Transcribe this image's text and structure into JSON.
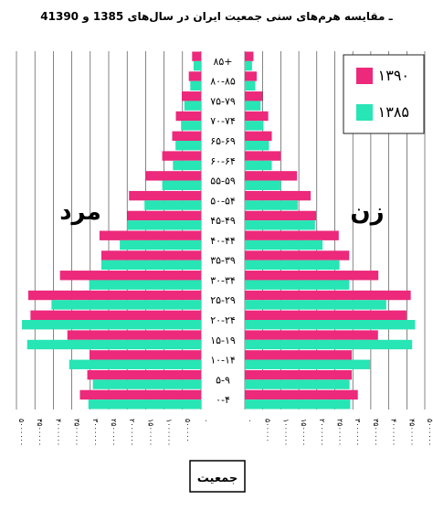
{
  "chart_data": {
    "type": "bar",
    "orientation": "horizontal-pyramid",
    "title": "4ـ مقایسه هرم‌های سنی جمعیت ایران در سال‌های  1385 و 1390",
    "left_label": "مرد",
    "right_label": "زن",
    "xlabel": "جمعیت",
    "categories": [
      "۰-۴",
      "۵-۹",
      "۱۰-۱۴",
      "۱۵-۱۹",
      "۲۰-۲۴",
      "۲۵-۲۹",
      "۳۰-۳۴",
      "۳۵-۳۹",
      "۴۰-۴۴",
      "۴۵-۴۹",
      "۵۰-۵۴",
      "۵۵-۵۹",
      "۶۰-۶۴",
      "۶۵-۶۹",
      "۷۰-۷۴",
      "۷۵-۷۹",
      "۸۰-۸۵",
      "۸۵+"
    ],
    "category_order": "bottom-to-top",
    "xlim": [
      0,
      5000000
    ],
    "x_ticks_left": [
      "۵۰۰۰۰۰۰",
      "۴۵۰۰۰۰۰",
      "۴۰۰۰۰۰۰",
      "۳۵۰۰۰۰۰",
      "۳۰۰۰۰۰۰",
      "۲۵۰۰۰۰۰",
      "۲۰۰۰۰۰۰",
      "۱۵۰۰۰۰۰",
      "۱۰۰۰۰۰۰",
      "۵۰۰۰۰۰",
      "۰"
    ],
    "x_ticks_right": [
      "۰",
      "۵۰۰۰۰۰",
      "۱۰۰۰۰۰۰",
      "۱۵۰۰۰۰۰",
      "۲۰۰۰۰۰۰",
      "۲۵۰۰۰۰۰",
      "۳۰۰۰۰۰۰",
      "۳۵۰۰۰۰۰",
      "۴۰۰۰۰۰۰",
      "۴۵۰۰۰۰۰",
      "۵۰۰۰۰۰۰"
    ],
    "series": [
      {
        "name": "۱۳۹۰",
        "color": "#ec297b",
        "male": [
          3280000,
          3080000,
          3020000,
          3620000,
          4620000,
          4680000,
          3820000,
          2700000,
          2750000,
          2000000,
          1950000,
          1510000,
          1050000,
          780000,
          680000,
          520000,
          330000,
          240000
        ],
        "female": [
          3140000,
          2970000,
          2970000,
          3700000,
          4490000,
          4610000,
          3710000,
          2900000,
          2610000,
          1980000,
          1830000,
          1450000,
          1000000,
          750000,
          650000,
          490000,
          330000,
          240000
        ]
      },
      {
        "name": "۱۳۸۵",
        "color": "#27e5b4",
        "male": [
          3050000,
          2930000,
          3570000,
          4710000,
          4850000,
          4050000,
          3030000,
          2700000,
          2200000,
          1980000,
          1530000,
          1050000,
          760000,
          690000,
          540000,
          450000,
          290000,
          200000
        ],
        "female": [
          2930000,
          2910000,
          3480000,
          4650000,
          4730000,
          3930000,
          2900000,
          2630000,
          2160000,
          1950000,
          1470000,
          1000000,
          750000,
          670000,
          520000,
          440000,
          290000,
          200000
        ]
      }
    ],
    "grid": true,
    "legend_position": "top-right"
  }
}
